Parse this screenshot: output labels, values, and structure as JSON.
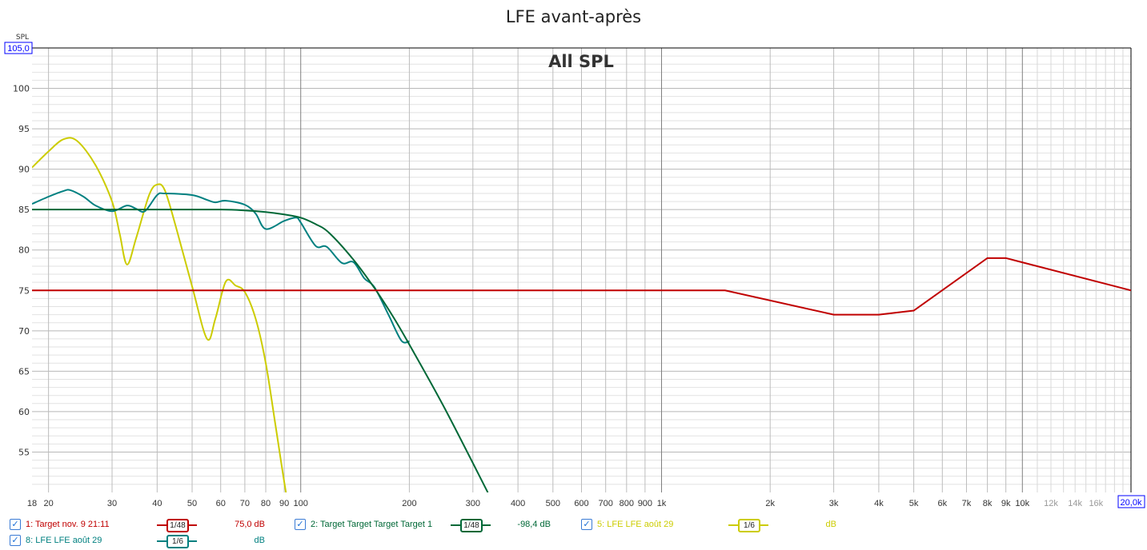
{
  "title": "LFE avant-après",
  "chart_data": {
    "type": "line",
    "title": "LFE avant-après",
    "subtitle": "All SPL",
    "ylabel": "SPL",
    "ylim": [
      50,
      105
    ],
    "xlim": [
      18,
      20000
    ],
    "xscale": "log",
    "y_top_marker": "105,0",
    "x_right_marker": "20,0k",
    "y_ticks": [
      55,
      60,
      65,
      70,
      75,
      80,
      85,
      90,
      95,
      100
    ],
    "x_ticks": [
      {
        "v": 18,
        "l": "18"
      },
      {
        "v": 20,
        "l": "20"
      },
      {
        "v": 30,
        "l": "30"
      },
      {
        "v": 40,
        "l": "40"
      },
      {
        "v": 50,
        "l": "50"
      },
      {
        "v": 60,
        "l": "60"
      },
      {
        "v": 70,
        "l": "70"
      },
      {
        "v": 80,
        "l": "80"
      },
      {
        "v": 90,
        "l": "90"
      },
      {
        "v": 100,
        "l": "100"
      },
      {
        "v": 200,
        "l": "200"
      },
      {
        "v": 300,
        "l": "300"
      },
      {
        "v": 400,
        "l": "400"
      },
      {
        "v": 500,
        "l": "500"
      },
      {
        "v": 600,
        "l": "600"
      },
      {
        "v": 700,
        "l": "700"
      },
      {
        "v": 800,
        "l": "800"
      },
      {
        "v": 900,
        "l": "900"
      },
      {
        "v": 1000,
        "l": "1k"
      },
      {
        "v": 2000,
        "l": "2k"
      },
      {
        "v": 3000,
        "l": "3k"
      },
      {
        "v": 4000,
        "l": "4k"
      },
      {
        "v": 5000,
        "l": "5k"
      },
      {
        "v": 6000,
        "l": "6k"
      },
      {
        "v": 7000,
        "l": "7k"
      },
      {
        "v": 8000,
        "l": "8k"
      },
      {
        "v": 9000,
        "l": "9k"
      },
      {
        "v": 10000,
        "l": "10k"
      },
      {
        "v": 12000,
        "l": "12k",
        "minor": true
      },
      {
        "v": 14000,
        "l": "14k",
        "minor": true
      },
      {
        "v": 16000,
        "l": "16k",
        "minor": true
      }
    ],
    "series": [
      {
        "name": "1: Target nov. 9 21:11",
        "color": "#c00000",
        "smoothing": "1/48",
        "value": "75,0 dB",
        "linear": true,
        "x": [
          18,
          1500,
          3000,
          4000,
          5000,
          8000,
          9000,
          20000
        ],
        "y": [
          75,
          75,
          72,
          72,
          72.5,
          79,
          79,
          75
        ]
      },
      {
        "name": "2: Target Target Target Target 1",
        "color": "#006837",
        "smoothing": "1/48",
        "value": "-98,4 dB",
        "x": [
          18,
          40,
          60,
          70,
          80,
          90,
          100,
          110,
          120,
          140,
          160,
          180,
          200,
          250,
          330
        ],
        "y": [
          85,
          85,
          85,
          84.9,
          84.7,
          84.4,
          84,
          83.2,
          82.1,
          78.8,
          75.3,
          71.8,
          68.3,
          60.5,
          50
        ]
      },
      {
        "name": "5: LFE LFE août 29",
        "color": "#cccc00",
        "smoothing": "1/6",
        "value": "dB",
        "x": [
          18,
          20,
          22,
          24,
          27,
          30,
          31.5,
          33,
          35,
          38,
          40,
          42,
          45,
          50,
          55,
          58,
          62,
          66,
          70,
          75,
          80,
          85,
          91,
          95
        ],
        "y": [
          90.2,
          92.2,
          93.7,
          93.5,
          90.5,
          86,
          82,
          78.2,
          81.5,
          86.8,
          88.1,
          87.4,
          83,
          75.5,
          69,
          71.5,
          76.1,
          75.6,
          74.8,
          71.5,
          66,
          58.5,
          50,
          46
        ]
      },
      {
        "name": "8: LFE LFE août 29",
        "color": "#008080",
        "smoothing": "1/6",
        "value": "dB",
        "x": [
          18,
          20,
          22,
          23,
          25,
          27,
          30,
          33,
          35,
          37,
          40,
          42,
          50,
          55,
          58,
          62,
          70,
          75,
          80,
          90,
          97,
          100,
          110,
          118,
          130,
          140,
          150,
          160,
          175,
          190,
          200
        ],
        "y": [
          85.7,
          86.6,
          87.3,
          87.4,
          86.6,
          85.5,
          84.8,
          85.5,
          85.1,
          84.8,
          86.8,
          87,
          86.8,
          86.2,
          85.9,
          86.1,
          85.6,
          84.5,
          82.6,
          83.6,
          84,
          83.4,
          80.5,
          80.4,
          78.4,
          78.5,
          76.5,
          75.4,
          72,
          68.8,
          68.7
        ]
      }
    ]
  }
}
